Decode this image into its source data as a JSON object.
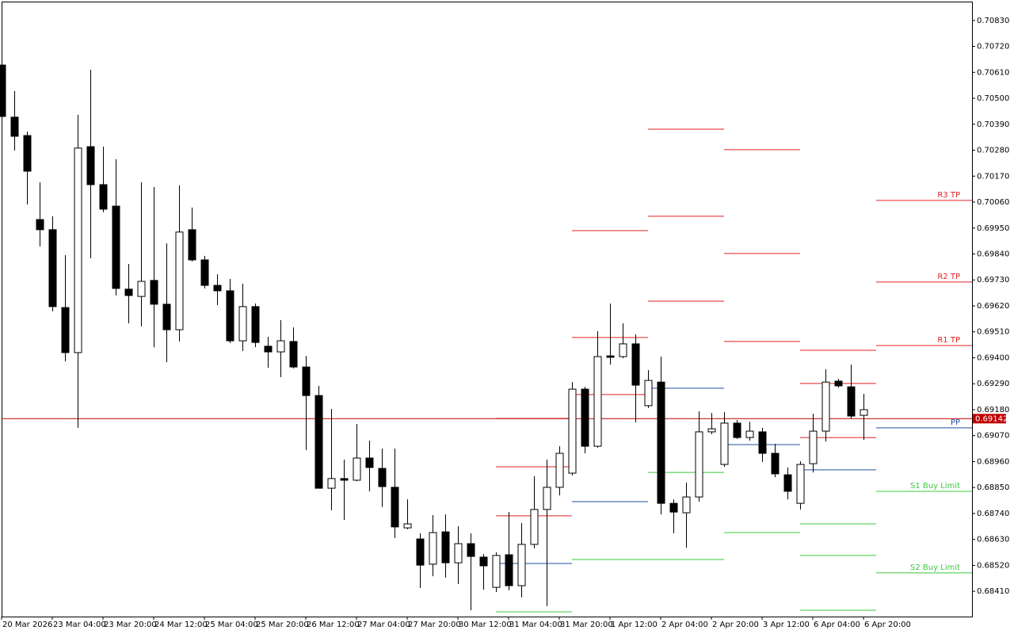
{
  "chart_data": {
    "type": "candlestick",
    "categories": [
      "20 Mar 2026",
      null,
      null,
      null,
      "23 Mar 04:00",
      null,
      null,
      null,
      "23 Mar 20:00",
      null,
      null,
      null,
      "24 Mar 12:00",
      null,
      null,
      null,
      "25 Mar 04:00",
      null,
      null,
      null,
      "25 Mar 20:00",
      null,
      null,
      null,
      "26 Mar 12:00",
      null,
      null,
      null,
      "27 Mar 04:00",
      null,
      null,
      null,
      "27 Mar 20:00",
      null,
      null,
      null,
      "30 Mar 12:00",
      null,
      null,
      null,
      "31 Mar 04:00",
      null,
      null,
      null,
      "31 Mar 20:00",
      null,
      null,
      null,
      "1 Apr 12:00",
      null,
      null,
      null,
      "2 Apr 04:00",
      null,
      null,
      null,
      "2 Apr 20:00",
      null,
      null,
      null,
      "3 Apr 12:00",
      null,
      null,
      null,
      "6 Apr 04:00",
      null,
      null,
      null,
      "6 Apr 20:00"
    ],
    "open": [
      0.70641,
      0.7042,
      0.70342,
      0.69986,
      0.69943,
      0.69613,
      0.69422,
      0.70295,
      0.70134,
      0.70043,
      0.69691,
      0.6966,
      0.69728,
      0.69627,
      0.69519,
      0.69943,
      0.69815,
      0.69707,
      0.69684,
      0.69472,
      0.69617,
      0.69449,
      0.69425,
      0.69469,
      0.69361,
      0.6924,
      0.68847,
      0.68888,
      0.68881,
      0.68975,
      0.68931,
      0.68851,
      0.68679,
      0.68632,
      0.68525,
      0.68662,
      0.68531,
      0.68612,
      0.68555,
      0.68427,
      0.68565,
      0.68434,
      0.68609,
      0.68757,
      0.68851,
      0.68911,
      0.69267,
      0.69025,
      0.69408,
      0.69405,
      0.69459,
      0.69197,
      0.69297,
      0.68783,
      0.68743,
      0.6881,
      0.69086,
      0.68948,
      0.69123,
      0.69062,
      0.69086,
      0.68995,
      0.68904,
      0.68783,
      0.68951,
      0.69089,
      0.69301,
      0.69277,
      0.69156
    ],
    "high": [
      0.70641,
      0.70531,
      0.70359,
      0.70144,
      0.7,
      0.69835,
      0.7043,
      0.70621,
      0.70295,
      0.70242,
      0.69798,
      0.70144,
      0.70124,
      0.69885,
      0.70131,
      0.70037,
      0.69832,
      0.69754,
      0.69734,
      0.69714,
      0.6963,
      0.69489,
      0.6956,
      0.69529,
      0.69408,
      0.69281,
      0.69183,
      0.68968,
      0.69119,
      0.69049,
      0.69015,
      0.69015,
      0.688,
      0.68656,
      0.68733,
      0.68736,
      0.68686,
      0.68656,
      0.68568,
      0.68575,
      0.68746,
      0.68699,
      0.68898,
      0.68968,
      0.69025,
      0.69297,
      0.69277,
      0.69513,
      0.6963,
      0.69546,
      0.69499,
      0.69348,
      0.69405,
      0.688,
      0.68871,
      0.69173,
      0.69166,
      0.6917,
      0.69136,
      0.69129,
      0.69103,
      0.69035,
      0.68935,
      0.68961,
      0.69163,
      0.69351,
      0.69311,
      0.69371,
      0.69247
    ],
    "low": [
      0.70423,
      0.70279,
      0.7005,
      0.69872,
      0.69597,
      0.69385,
      0.69103,
      0.69822,
      0.70017,
      0.69664,
      0.69546,
      0.69533,
      0.69445,
      0.69381,
      0.69469,
      0.69808,
      0.69694,
      0.69623,
      0.69462,
      0.69429,
      0.69445,
      0.69358,
      0.69318,
      0.69355,
      0.69009,
      0.68847,
      0.68753,
      0.68713,
      0.68877,
      0.68834,
      0.68767,
      0.68636,
      0.68673,
      0.68424,
      0.68474,
      0.68468,
      0.68441,
      0.6833,
      0.68417,
      0.68407,
      0.68414,
      0.68384,
      0.68592,
      0.68347,
      0.68817,
      0.68901,
      0.68995,
      0.69019,
      0.69371,
      0.69398,
      0.69126,
      0.69187,
      0.68736,
      0.68656,
      0.68595,
      0.6879,
      0.69076,
      0.68938,
      0.69056,
      0.69049,
      0.68958,
      0.68894,
      0.688,
      0.68757,
      0.68914,
      0.69045,
      0.69274,
      0.69143,
      0.69052
    ],
    "close": [
      0.70423,
      0.70339,
      0.70191,
      0.69943,
      0.69617,
      0.69422,
      0.70289,
      0.70134,
      0.7003,
      0.69694,
      0.69664,
      0.69724,
      0.69627,
      0.69519,
      0.69933,
      0.69815,
      0.69707,
      0.69684,
      0.69472,
      0.69617,
      0.69465,
      0.69425,
      0.69472,
      0.69361,
      0.6924,
      0.68847,
      0.68888,
      0.68881,
      0.68975,
      0.68935,
      0.68854,
      0.68683,
      0.68696,
      0.68521,
      0.68659,
      0.68531,
      0.68612,
      0.68558,
      0.68518,
      0.68562,
      0.68434,
      0.68609,
      0.68757,
      0.68851,
      0.68995,
      0.69267,
      0.69025,
      0.69405,
      0.69402,
      0.69459,
      0.69284,
      0.69304,
      0.68783,
      0.68746,
      0.6881,
      0.69086,
      0.69099,
      0.69123,
      0.69062,
      0.69089,
      0.68995,
      0.68908,
      0.68834,
      0.68948,
      0.69089,
      0.69297,
      0.69281,
      0.69153,
      0.6918
    ],
    "bull_color": "#ffffff",
    "bear_color": "#000000",
    "outline_color": "#000000",
    "ylim": [
      0.68303,
      0.7091
    ],
    "yticks": [
      {
        "value": 0.7083,
        "label": "0.70830"
      },
      {
        "value": 0.7072,
        "label": "0.70720"
      },
      {
        "value": 0.7061,
        "label": "0.70610"
      },
      {
        "value": 0.705,
        "label": "0.70500"
      },
      {
        "value": 0.7039,
        "label": "0.70390"
      },
      {
        "value": 0.7028,
        "label": "0.70280"
      },
      {
        "value": 0.7017,
        "label": "0.70170"
      },
      {
        "value": 0.7006,
        "label": "0.70060"
      },
      {
        "value": 0.6995,
        "label": "0.69950"
      },
      {
        "value": 0.6984,
        "label": "0.69840"
      },
      {
        "value": 0.6973,
        "label": "0.69730"
      },
      {
        "value": 0.6962,
        "label": "0.69620"
      },
      {
        "value": 0.6951,
        "label": "0.69510"
      },
      {
        "value": 0.694,
        "label": "0.69400"
      },
      {
        "value": 0.6929,
        "label": "0.69290"
      },
      {
        "value": 0.6918,
        "label": "0.69180"
      },
      {
        "value": 0.6907,
        "label": "0.69070"
      },
      {
        "value": 0.6896,
        "label": "0.68960"
      },
      {
        "value": 0.6885,
        "label": "0.68850"
      },
      {
        "value": 0.6874,
        "label": "0.68740"
      },
      {
        "value": 0.6863,
        "label": "0.68630"
      },
      {
        "value": 0.6852,
        "label": "0.68520"
      },
      {
        "value": 0.6841,
        "label": "0.68410"
      }
    ],
    "current_price": {
      "value": 0.69142,
      "label": "0.69142",
      "color": "#c00000"
    },
    "pivot_segments": [
      {
        "start": 39,
        "values": [
          0.69143,
          0.68938,
          0.6873,
          0.68528,
          0.68323
        ],
        "colors": [
          "#c00000",
          "#e02020",
          "#e02020",
          "#1f4f9f",
          "#3cc83c"
        ]
      },
      {
        "start": 45,
        "values": [
          0.69939,
          0.69486,
          0.69244,
          0.6879,
          0.68545
        ],
        "colors": [
          "#e02020",
          "#e02020",
          "#e02020",
          "#1f4f9f",
          "#3cc83c"
        ]
      },
      {
        "start": 51,
        "values": [
          0.70369,
          0.7,
          0.6964,
          0.69271,
          0.68914,
          0.68545
        ],
        "colors": [
          "#e02020",
          "#e02020",
          "#e02020",
          "#1f4f9f",
          "#3cc83c",
          "#3cc83c"
        ]
      },
      {
        "start": 57,
        "values": [
          0.70282,
          0.69842,
          0.69469,
          0.69032,
          0.68659
        ],
        "colors": [
          "#e02020",
          "#e02020",
          "#e02020",
          "#1f4f9f",
          "#3cc83c"
        ]
      },
      {
        "start": 63,
        "values": [
          0.69432,
          0.69291,
          0.69062,
          0.68925,
          0.68696,
          0.68562,
          0.6833
        ],
        "colors": [
          "#e02020",
          "#e02020",
          "#e02020",
          "#1f4f9f",
          "#3cc83c",
          "#3cc83c",
          "#3cc83c"
        ]
      },
      {
        "start": 69,
        "values": [
          0.70067,
          0.69721,
          0.69452,
          0.69103,
          0.68834,
          0.68488
        ],
        "colors": [
          "#e02020",
          "#e02020",
          "#e02020",
          "#1f4f9f",
          "#3cc83c",
          "#3cc83c"
        ],
        "labels": [
          "R3 TP",
          "R2 TP",
          "R1 TP",
          "PP",
          "S1 Buy Limit",
          "S2 Buy Limit"
        ]
      }
    ]
  }
}
